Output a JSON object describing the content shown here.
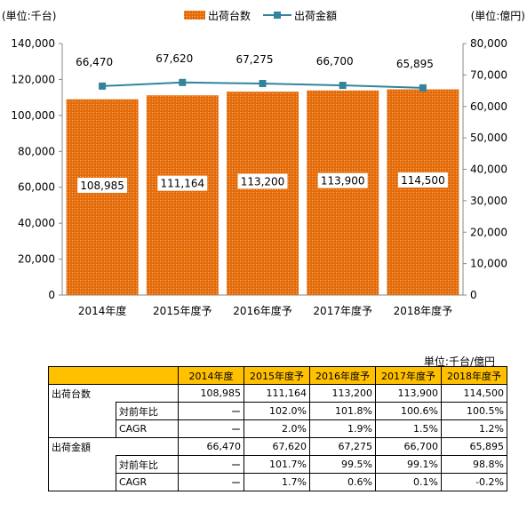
{
  "chart_data": {
    "type": "bar+line",
    "categories": [
      "2014年度",
      "2015年度予",
      "2016年度予",
      "2017年度予",
      "2018年度予"
    ],
    "series": [
      {
        "name": "出荷台数",
        "type": "bar",
        "axis": "left",
        "values": [
          108985,
          111164,
          113200,
          113900,
          114500
        ],
        "labels": [
          "108,985",
          "111,164",
          "113,200",
          "113,900",
          "114,500"
        ],
        "color": "#e46c0a"
      },
      {
        "name": "出荷金額",
        "type": "line",
        "axis": "right",
        "values": [
          66470,
          67620,
          67275,
          66700,
          65895
        ],
        "labels": [
          "66,470",
          "67,620",
          "67,275",
          "66,700",
          "65,895"
        ],
        "color": "#31849b"
      }
    ],
    "left_unit": "(単位:千台)",
    "right_unit": "(単位:億円)",
    "ylim_left": [
      0,
      140000
    ],
    "ylim_right": [
      0,
      80000
    ],
    "yticks_left": [
      "0",
      "20,000",
      "40,000",
      "60,000",
      "80,000",
      "100,000",
      "120,000",
      "140,000"
    ],
    "yticks_right": [
      "0",
      "10,000",
      "20,000",
      "30,000",
      "40,000",
      "50,000",
      "60,000",
      "70,000",
      "80,000"
    ],
    "legend_position": "top-center",
    "grid": false
  },
  "table": {
    "unit_note": "単位:千台/億円",
    "header": [
      "",
      "",
      "2014年度",
      "2015年度予",
      "2016年度予",
      "2017年度予",
      "2018年度予"
    ],
    "rows": [
      {
        "group": "出荷台数",
        "sub": "",
        "cells": [
          "108,985",
          "111,164",
          "113,200",
          "113,900",
          "114,500"
        ]
      },
      {
        "group": "",
        "sub": "対前年比",
        "cells": [
          "ー",
          "102.0%",
          "101.8%",
          "100.6%",
          "100.5%"
        ]
      },
      {
        "group": "",
        "sub": "CAGR",
        "cells": [
          "ー",
          "2.0%",
          "1.9%",
          "1.5%",
          "1.2%"
        ]
      },
      {
        "group": "出荷金額",
        "sub": "",
        "cells": [
          "66,470",
          "67,620",
          "67,275",
          "66,700",
          "65,895"
        ]
      },
      {
        "group": "",
        "sub": "対前年比",
        "cells": [
          "ー",
          "101.7%",
          "99.5%",
          "99.1%",
          "98.8%"
        ]
      },
      {
        "group": "",
        "sub": "CAGR",
        "cells": [
          "ー",
          "1.7%",
          "0.6%",
          "0.1%",
          "-0.2%"
        ]
      }
    ]
  }
}
